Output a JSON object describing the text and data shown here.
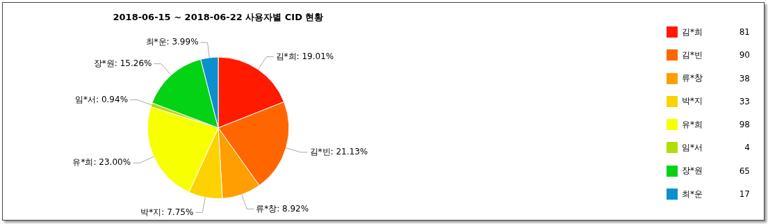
{
  "chart_data": {
    "type": "pie",
    "title": "2018-06-15 ~ 2018-06-22 사용자별 CID 현황",
    "categories": [
      "김*희",
      "김*빈",
      "류*창",
      "박*지",
      "유*희",
      "임*서",
      "장*원",
      "최*운"
    ],
    "values": [
      19.01,
      21.13,
      8.92,
      7.75,
      23.0,
      0.94,
      15.26,
      3.99
    ],
    "value_labels": [
      ": 19.01%",
      ": 21.13%",
      ": 8.92%",
      ": 7.75%",
      ": 23.00%",
      ": 0.94%",
      ": 15.26%",
      ": 3.99%"
    ],
    "annotations": [
      "81",
      "90",
      "38",
      "33",
      "98",
      "4",
      "65",
      "17"
    ],
    "colors": [
      "#ff1a00",
      "#ff6600",
      "#ff9e01",
      "#fcd202",
      "#f8ff01",
      "#b0de09",
      "#04d215",
      "#0d8ecf"
    ],
    "legend": "right"
  }
}
